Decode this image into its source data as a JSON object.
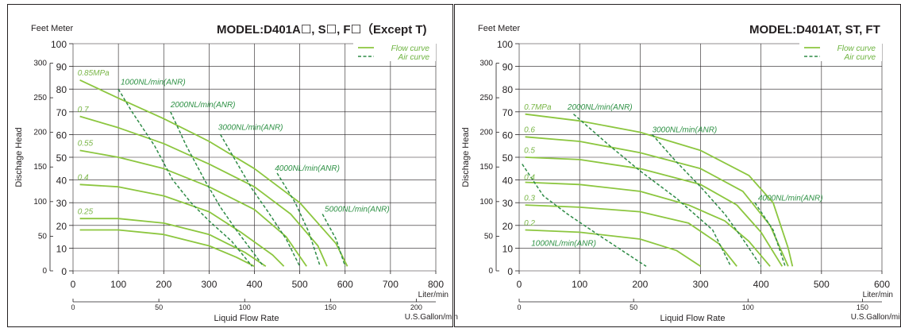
{
  "colors": {
    "flow": "#8cc63f",
    "air": "#2e8b46",
    "grid": "#231f20",
    "frame": "#231f20"
  },
  "chart_data": [
    {
      "type": "line",
      "title": "MODEL:D401A☐, S☐, F☐（Except T)",
      "units_label": "Feet Meter",
      "ylabel": "Dischage Head",
      "xlabel": "Liquid Flow Rate",
      "x_unit": "Liter/min",
      "x2_unit": "U.S.Gallon/min",
      "xlim": [
        0,
        800
      ],
      "ylim": [
        0,
        100
      ],
      "xticks": [
        0,
        100,
        200,
        300,
        400,
        500,
        600,
        700,
        800
      ],
      "yticks": [
        0,
        10,
        20,
        30,
        40,
        50,
        60,
        70,
        80,
        90,
        100
      ],
      "feet_ticks": [
        0,
        50,
        100,
        150,
        200,
        250,
        300
      ],
      "gallon_ticks": [
        0,
        50,
        100,
        150,
        200
      ],
      "legend": {
        "position": "top-right",
        "flow": "Flow curve",
        "air": "Air curve"
      },
      "flow_curves": [
        {
          "label": "0.85MPa",
          "points": [
            [
              15,
              84
            ],
            [
              100,
              76
            ],
            [
              200,
              67
            ],
            [
              300,
              57
            ],
            [
              400,
              45
            ],
            [
              500,
              30
            ],
            [
              580,
              12
            ],
            [
              605,
              2
            ]
          ]
        },
        {
          "label": "0.7",
          "points": [
            [
              15,
              68
            ],
            [
              100,
              63
            ],
            [
              200,
              56
            ],
            [
              300,
              47
            ],
            [
              400,
              37
            ],
            [
              480,
              25
            ],
            [
              540,
              11
            ],
            [
              560,
              2
            ]
          ]
        },
        {
          "label": "0.55",
          "points": [
            [
              15,
              53
            ],
            [
              100,
              50
            ],
            [
              200,
              45
            ],
            [
              300,
              37
            ],
            [
              400,
              27
            ],
            [
              470,
              15
            ],
            [
              515,
              2
            ]
          ]
        },
        {
          "label": "0.4",
          "points": [
            [
              15,
              38
            ],
            [
              100,
              37
            ],
            [
              200,
              33
            ],
            [
              300,
              26
            ],
            [
              370,
              17
            ],
            [
              440,
              7
            ],
            [
              465,
              2
            ]
          ]
        },
        {
          "label": "0.25",
          "points": [
            [
              15,
              23
            ],
            [
              100,
              23
            ],
            [
              200,
              21
            ],
            [
              300,
              16
            ],
            [
              380,
              8
            ],
            [
              425,
              2
            ]
          ]
        },
        {
          "label": "",
          "points": [
            [
              15,
              18
            ],
            [
              100,
              18
            ],
            [
              200,
              16
            ],
            [
              300,
              11
            ],
            [
              360,
              6
            ],
            [
              400,
              2
            ]
          ]
        }
      ],
      "air_curves": [
        {
          "label": "1000NL/min(ANR)",
          "points": [
            [
              100,
              80
            ],
            [
              130,
              70
            ],
            [
              180,
              55
            ],
            [
              220,
              40
            ],
            [
              260,
              30
            ],
            [
              300,
              22
            ],
            [
              350,
              13
            ],
            [
              395,
              2
            ]
          ]
        },
        {
          "label": "2000NL/min(ANR)",
          "points": [
            [
              215,
              70
            ],
            [
              250,
              55
            ],
            [
              290,
              40
            ],
            [
              325,
              28
            ],
            [
              360,
              18
            ],
            [
              420,
              2
            ]
          ]
        },
        {
          "label": "3000NL/min(ANR)",
          "points": [
            [
              325,
              60
            ],
            [
              360,
              48
            ],
            [
              395,
              36
            ],
            [
              430,
              26
            ],
            [
              470,
              14
            ],
            [
              500,
              2
            ]
          ]
        },
        {
          "label": "4000NL/min(ANR)",
          "points": [
            [
              450,
              43
            ],
            [
              490,
              30
            ],
            [
              520,
              17
            ],
            [
              545,
              2
            ]
          ]
        },
        {
          "label": "5000NL/min(ANR)",
          "points": [
            [
              550,
              25
            ],
            [
              580,
              14
            ],
            [
              600,
              2
            ]
          ]
        }
      ],
      "flow_labels": [
        {
          "text": "0.85MPa",
          "x": 10,
          "y": 86
        },
        {
          "text": "0.7",
          "x": 10,
          "y": 70
        },
        {
          "text": "0.55",
          "x": 10,
          "y": 55
        },
        {
          "text": "0.4",
          "x": 10,
          "y": 40
        },
        {
          "text": "0.25",
          "x": 10,
          "y": 25
        }
      ],
      "air_labels": [
        {
          "text": "1000NL/min(ANR)",
          "x": 105,
          "y": 82
        },
        {
          "text": "2000NL/min(ANR)",
          "x": 215,
          "y": 72
        },
        {
          "text": "3000NL/min(ANR)",
          "x": 320,
          "y": 62
        },
        {
          "text": "4000NL/min(ANR)",
          "x": 445,
          "y": 44
        },
        {
          "text": "5000NL/min(ANR)",
          "x": 555,
          "y": 26
        }
      ]
    },
    {
      "type": "line",
      "title": "MODEL:D401AT, ST, FT",
      "units_label": "Feet Meter",
      "ylabel": "Dischage Head",
      "xlabel": "Liquid Flow Rate",
      "x_unit": "Liter/min",
      "x2_unit": "U.S.Gallon/min",
      "xlim": [
        0,
        600
      ],
      "ylim": [
        0,
        100
      ],
      "xticks": [
        0,
        100,
        200,
        300,
        400,
        500,
        600
      ],
      "yticks": [
        0,
        10,
        20,
        30,
        40,
        50,
        60,
        70,
        80,
        90,
        100
      ],
      "feet_ticks": [
        0,
        50,
        100,
        150,
        200,
        250,
        300
      ],
      "gallon_ticks": [
        0,
        50,
        100,
        150
      ],
      "legend": {
        "position": "top-right",
        "flow": "Flow curve",
        "air": "Air curve"
      },
      "flow_curves": [
        {
          "label": "0.7MPa",
          "points": [
            [
              10,
              69
            ],
            [
              100,
              66
            ],
            [
              200,
              61
            ],
            [
              300,
              53
            ],
            [
              380,
              42
            ],
            [
              420,
              30
            ],
            [
              445,
              10
            ],
            [
              452,
              2
            ]
          ]
        },
        {
          "label": "0.6",
          "points": [
            [
              10,
              59
            ],
            [
              100,
              57
            ],
            [
              200,
              52
            ],
            [
              300,
              45
            ],
            [
              370,
              35
            ],
            [
              415,
              20
            ],
            [
              445,
              2
            ]
          ]
        },
        {
          "label": "0.5",
          "points": [
            [
              10,
              50
            ],
            [
              100,
              49
            ],
            [
              200,
              45
            ],
            [
              300,
              38
            ],
            [
              360,
              29
            ],
            [
              400,
              17
            ],
            [
              435,
              2
            ]
          ]
        },
        {
          "label": "0.4",
          "points": [
            [
              10,
              39
            ],
            [
              100,
              38
            ],
            [
              200,
              35
            ],
            [
              280,
              29
            ],
            [
              340,
              22
            ],
            [
              380,
              13
            ],
            [
              415,
              2
            ]
          ]
        },
        {
          "label": "0.3",
          "points": [
            [
              10,
              29
            ],
            [
              100,
              28
            ],
            [
              200,
              26
            ],
            [
              280,
              21
            ],
            [
              330,
              12
            ],
            [
              360,
              2
            ]
          ]
        },
        {
          "label": "0.2",
          "points": [
            [
              10,
              18
            ],
            [
              100,
              17
            ],
            [
              200,
              14
            ],
            [
              260,
              9
            ],
            [
              300,
              2
            ]
          ]
        }
      ],
      "air_curves": [
        {
          "label": "1000NL/min(ANR)",
          "points": [
            [
              5,
              47
            ],
            [
              40,
              33
            ],
            [
              80,
              25
            ],
            [
              130,
              16
            ],
            [
              170,
              9
            ],
            [
              210,
              2
            ]
          ]
        },
        {
          "label": "2000NL/min(ANR)",
          "points": [
            [
              90,
              69
            ],
            [
              150,
              55
            ],
            [
              200,
              44
            ],
            [
              260,
              32
            ],
            [
              320,
              18
            ],
            [
              350,
              2
            ]
          ]
        },
        {
          "label": "3000NL/min(ANR)",
          "points": [
            [
              220,
              60
            ],
            [
              260,
              48
            ],
            [
              300,
              37
            ],
            [
              340,
              25
            ],
            [
              370,
              14
            ],
            [
              400,
              2
            ]
          ]
        },
        {
          "label": "4000NL/min(ANR)",
          "points": [
            [
              390,
              30
            ],
            [
              420,
              18
            ],
            [
              440,
              2
            ]
          ]
        }
      ],
      "flow_labels": [
        {
          "text": "0.7MPa",
          "x": 8,
          "y": 71
        },
        {
          "text": "0.6",
          "x": 8,
          "y": 61
        },
        {
          "text": "0.5",
          "x": 8,
          "y": 52
        },
        {
          "text": "0.4",
          "x": 8,
          "y": 40
        },
        {
          "text": "0.3",
          "x": 8,
          "y": 31
        },
        {
          "text": "0.2",
          "x": 8,
          "y": 20
        }
      ],
      "air_labels": [
        {
          "text": "2000NL/min(ANR)",
          "x": 80,
          "y": 71
        },
        {
          "text": "3000NL/min(ANR)",
          "x": 220,
          "y": 61
        },
        {
          "text": "4000NL/min(ANR)",
          "x": 395,
          "y": 31
        },
        {
          "text": "1000NL/min(ANR)",
          "x": 20,
          "y": 11
        }
      ]
    }
  ]
}
